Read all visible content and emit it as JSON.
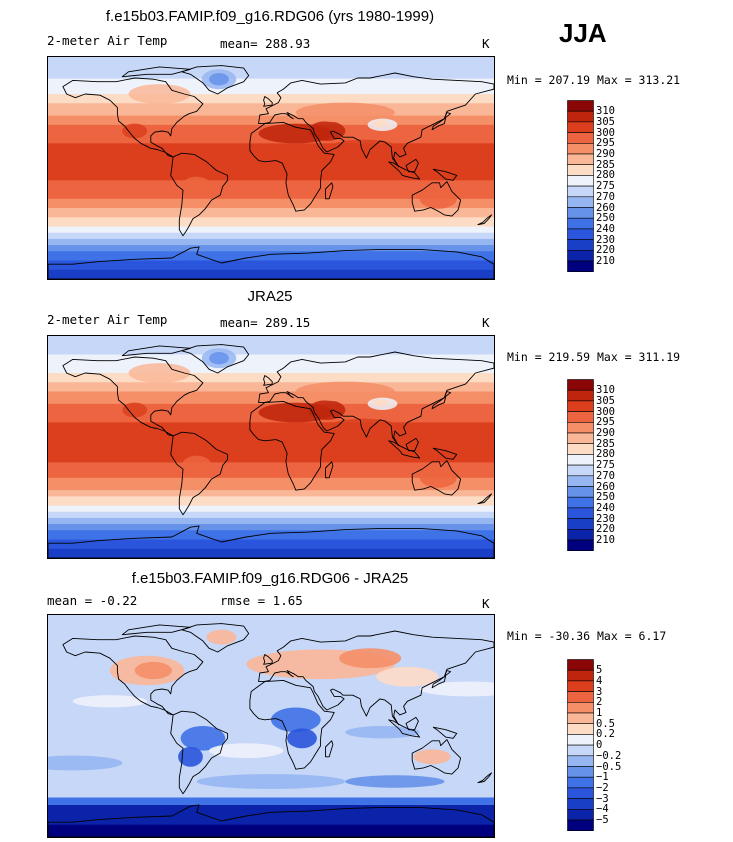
{
  "season": "JJA",
  "panels": [
    {
      "title": "f.e15b03.FAMIP.f09_g16.RDG06 (yrs 1980-1999)",
      "left_label": "2-meter Air Temp",
      "center_label": "mean= 288.93",
      "units": "K",
      "minmax": "Min = 207.19 Max = 313.21",
      "kind": "temperature"
    },
    {
      "title": "JRA25",
      "left_label": "2-meter Air Temp",
      "center_label": "mean= 289.15",
      "units": "K",
      "minmax": "Min = 219.59 Max = 311.19",
      "kind": "temperature"
    },
    {
      "title": "f.e15b03.FAMIP.f09_g16.RDG06 - JRA25",
      "left_label": "mean =   -0.22",
      "center_label": "rmse =    1.65",
      "units": "K",
      "minmax": "Min = -30.36 Max =   6.17",
      "kind": "difference"
    }
  ],
  "chart_data": [
    {
      "type": "heatmap",
      "title": "f.e15b03.FAMIP.f09_g16.RDG06 (yrs 1980-1999)",
      "variable": "2-meter Air Temp",
      "units": "K",
      "mean": 288.93,
      "min": 207.19,
      "max": 313.21,
      "levels": [
        210,
        220,
        230,
        240,
        250,
        260,
        270,
        275,
        280,
        285,
        290,
        295,
        300,
        305,
        310
      ],
      "colors": [
        "#00007e",
        "#0a23a8",
        "#1a3fc7",
        "#2a55dc",
        "#3f72e6",
        "#6692ea",
        "#96b6f1",
        "#c6d7f8",
        "#eef2fb",
        "#fddcc6",
        "#f9b797",
        "#f58f68",
        "#ec6540",
        "#dc3f1d",
        "#be250c",
        "#8b0606"
      ]
    },
    {
      "type": "heatmap",
      "title": "JRA25",
      "variable": "2-meter Air Temp",
      "units": "K",
      "mean": 289.15,
      "min": 219.59,
      "max": 311.19,
      "levels": [
        210,
        220,
        230,
        240,
        250,
        260,
        270,
        275,
        280,
        285,
        290,
        295,
        300,
        305,
        310
      ],
      "colors": [
        "#00007e",
        "#0a23a8",
        "#1a3fc7",
        "#2a55dc",
        "#3f72e6",
        "#6692ea",
        "#96b6f1",
        "#c6d7f8",
        "#eef2fb",
        "#fddcc6",
        "#f9b797",
        "#f58f68",
        "#ec6540",
        "#dc3f1d",
        "#be250c",
        "#8b0606"
      ]
    },
    {
      "type": "heatmap",
      "title": "f.e15b03.FAMIP.f09_g16.RDG06 - JRA25",
      "units": "K",
      "mean": -0.22,
      "rmse": 1.65,
      "min": -30.36,
      "max": 6.17,
      "levels": [
        -5,
        -4,
        -3,
        -2,
        -1,
        -0.5,
        -0.2,
        0,
        0.2,
        0.5,
        1,
        2,
        3,
        4,
        5
      ],
      "colors": [
        "#00007e",
        "#0a23a8",
        "#1a3fc7",
        "#2a55dc",
        "#3f72e6",
        "#6692ea",
        "#96b6f1",
        "#c6d7f8",
        "#eef2fb",
        "#fddcc6",
        "#f9b797",
        "#f58f68",
        "#ec6540",
        "#dc3f1d",
        "#be250c",
        "#8b0606"
      ]
    }
  ]
}
